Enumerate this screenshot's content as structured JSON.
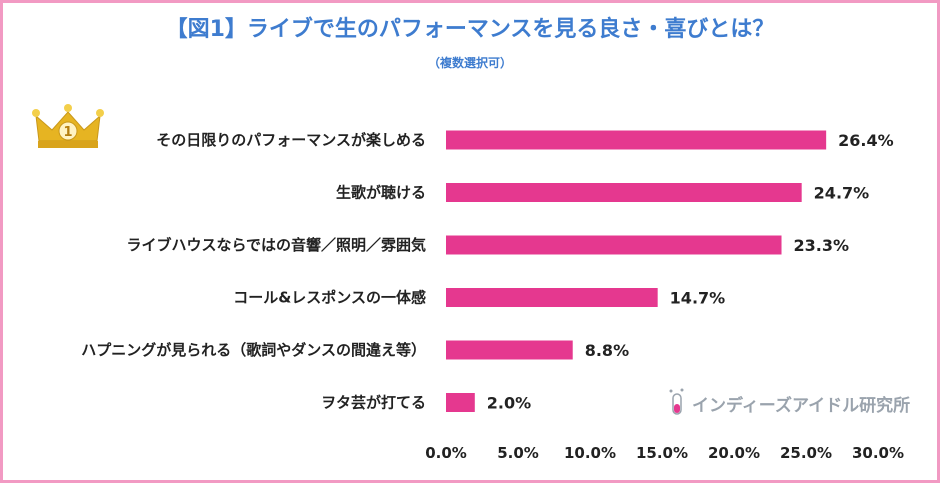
{
  "title": "【図1】ライブで生のパフォーマンスを見る良さ・喜びとは？",
  "subtitle": "（複数選択可）",
  "rank_badge": "1",
  "watermark": "インディーズアイドル研究所",
  "colors": {
    "bar": "#e5388f",
    "title": "#3e7ccf",
    "frame": "#f29ac3",
    "crown": "#e6b422"
  },
  "icons": {
    "crown": "crown-icon",
    "logo": "test-tube-icon"
  },
  "chart_data": {
    "type": "bar",
    "orientation": "horizontal",
    "categories": [
      "その日限りのパフォーマンスが楽しめる",
      "生歌が聴ける",
      "ライブハウスならではの音響／照明／雰囲気",
      "コール&レスポンスの一体感",
      "ハプニングが見られる（歌詞やダンスの間違え等）",
      "ヲタ芸が打てる"
    ],
    "values": [
      26.4,
      24.7,
      23.3,
      14.7,
      8.8,
      2.0
    ],
    "value_labels": [
      "26.4%",
      "24.7%",
      "23.3%",
      "14.7%",
      "8.8%",
      "2.0%"
    ],
    "xlim": [
      0,
      30
    ],
    "ticks": [
      0,
      5,
      10,
      15,
      20,
      25,
      30
    ],
    "tick_labels": [
      "0.0%",
      "5.0%",
      "10.0%",
      "15.0%",
      "20.0%",
      "25.0%",
      "30.0%"
    ],
    "grid": false,
    "legend": "none"
  }
}
